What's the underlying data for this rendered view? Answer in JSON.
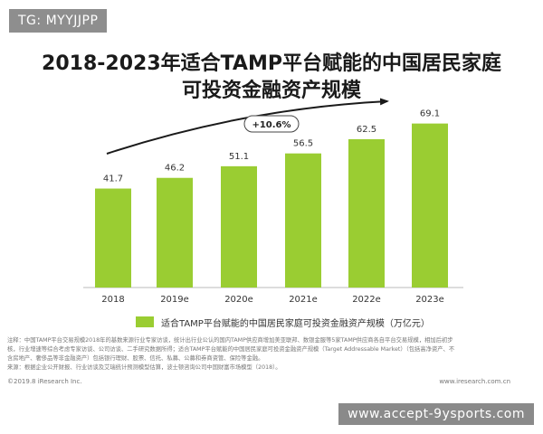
{
  "tag": "TG: MYYJJPP",
  "watermark": "www.accept-9ysports.com",
  "chart_data": {
    "type": "bar",
    "title_line1": "2018-2023年适合TAMP平台赋能的中国居民家庭",
    "title_line2": "可投资金融资产规模",
    "categories": [
      "2018",
      "2019e",
      "2020e",
      "2021e",
      "2022e",
      "2023e"
    ],
    "series": [
      {
        "name": "适合TAMP平台赋能的中国居民家庭可投资金融资产规模（万亿元）",
        "values": [
          41.7,
          46.2,
          51.1,
          56.5,
          62.5,
          69.1
        ],
        "color": "#9acd32"
      }
    ],
    "data_labels": [
      "41.7",
      "46.2",
      "51.1",
      "56.5",
      "62.5",
      "69.1"
    ],
    "growth_annotation": "+10.6%",
    "ylim": [
      0,
      80
    ],
    "grid": false,
    "legend_position": "bottom"
  },
  "notes": [
    "注释：中国TAMP平台交易规模2018年的基数来源行业专家访谈，统计出行业公认的国内TAMP供应商增加美亚联邦、数银金服等5家TAMP供应商各自平台交易规模，相加后初步",
    "核，行业增速等综合考虑专家访谈、公司访谈、二手研究数据所得；适合TAMP平台赋能的中国居民家庭可投资金融资产规模（Target Addressable Market）（包括高净资产、不",
    "含房地产、奢侈品等非金融资产）包括银行理财、股票、信托、私募、公募和券商资管、保险等金融。",
    "来源：根据企业公开财报、行业访谈及艾瑞统计预测模型估算，波士顿咨询公司中国财富市场模型（2018）。"
  ],
  "footer_left": "©2019.8 iResearch Inc.",
  "footer_right": "www.iresearch.com.cn"
}
